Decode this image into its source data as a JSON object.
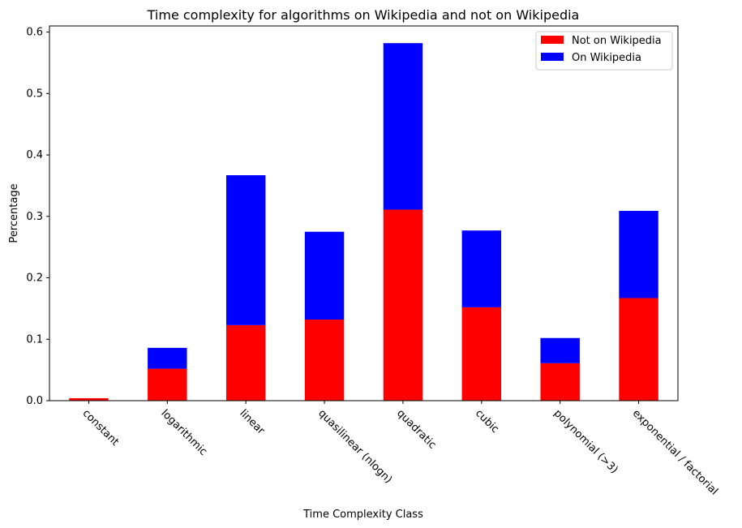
{
  "chart_data": {
    "type": "bar",
    "stacked": true,
    "title": "Time complexity for algorithms on Wikipedia and not on Wikipedia",
    "xlabel": "Time Complexity Class",
    "ylabel": "Percentage",
    "ylim": [
      0,
      0.61
    ],
    "yticks": [
      0.0,
      0.1,
      0.2,
      0.3,
      0.4,
      0.5,
      0.6
    ],
    "ytick_labels": [
      "0.0",
      "0.1",
      "0.2",
      "0.3",
      "0.4",
      "0.5",
      "0.6"
    ],
    "categories": [
      "constant",
      "logarithmic",
      "linear",
      "quasilinear (nlogn)",
      "quadratic",
      "cubic",
      "polynomial (>3)",
      "exponential / factorial"
    ],
    "series": [
      {
        "name": "Not on Wikipedia",
        "color": "#ff0000",
        "values": [
          0.004,
          0.052,
          0.123,
          0.132,
          0.311,
          0.152,
          0.061,
          0.167
        ]
      },
      {
        "name": "On Wikipedia",
        "color": "#0000ff",
        "values": [
          0.0,
          0.034,
          0.244,
          0.143,
          0.271,
          0.125,
          0.041,
          0.142
        ]
      }
    ],
    "legend_position": "top-right",
    "grid": false
  }
}
